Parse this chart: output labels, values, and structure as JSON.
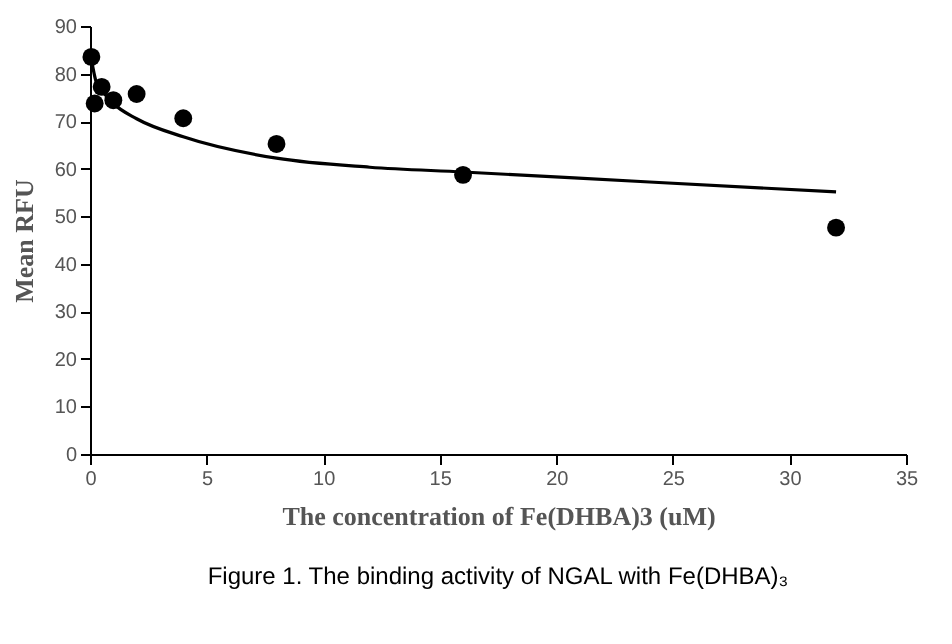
{
  "chart_data": {
    "type": "scatter",
    "xlabel": "The concentration of Fe(DHBA)3 (uM)",
    "ylabel": "Mean RFU",
    "annotations": [
      "Figure 1. The binding activity of NGAL with Fe(DHBA)₃"
    ],
    "xlim": [
      0,
      35
    ],
    "xticks": [
      0,
      5,
      10,
      15,
      20,
      25,
      30,
      35
    ],
    "ylim": [
      0,
      90
    ],
    "yticks": [
      0,
      10,
      20,
      30,
      40,
      50,
      60,
      70,
      80,
      90
    ],
    "grid": false,
    "series": [
      {
        "color": "#000000",
        "marker": "circle",
        "x": [
          0.06,
          0.2,
          0.5,
          1,
          2,
          4,
          8,
          16,
          32
        ],
        "values": [
          83.5,
          73.7,
          77.2,
          74.4,
          75.7,
          70.6,
          65.2,
          58.7,
          47.6
        ]
      },
      {
        "type": "line",
        "color": "#000000",
        "marker": "none",
        "line_style": "solid",
        "x": [
          0.06,
          0.25,
          0.5,
          1,
          2,
          4,
          8,
          12,
          16,
          24,
          32
        ],
        "values": [
          83,
          78.5,
          76.5,
          73.7,
          70.5,
          66.7,
          62.2,
          60.3,
          59.3,
          57.2,
          55.1
        ]
      }
    ]
  }
}
